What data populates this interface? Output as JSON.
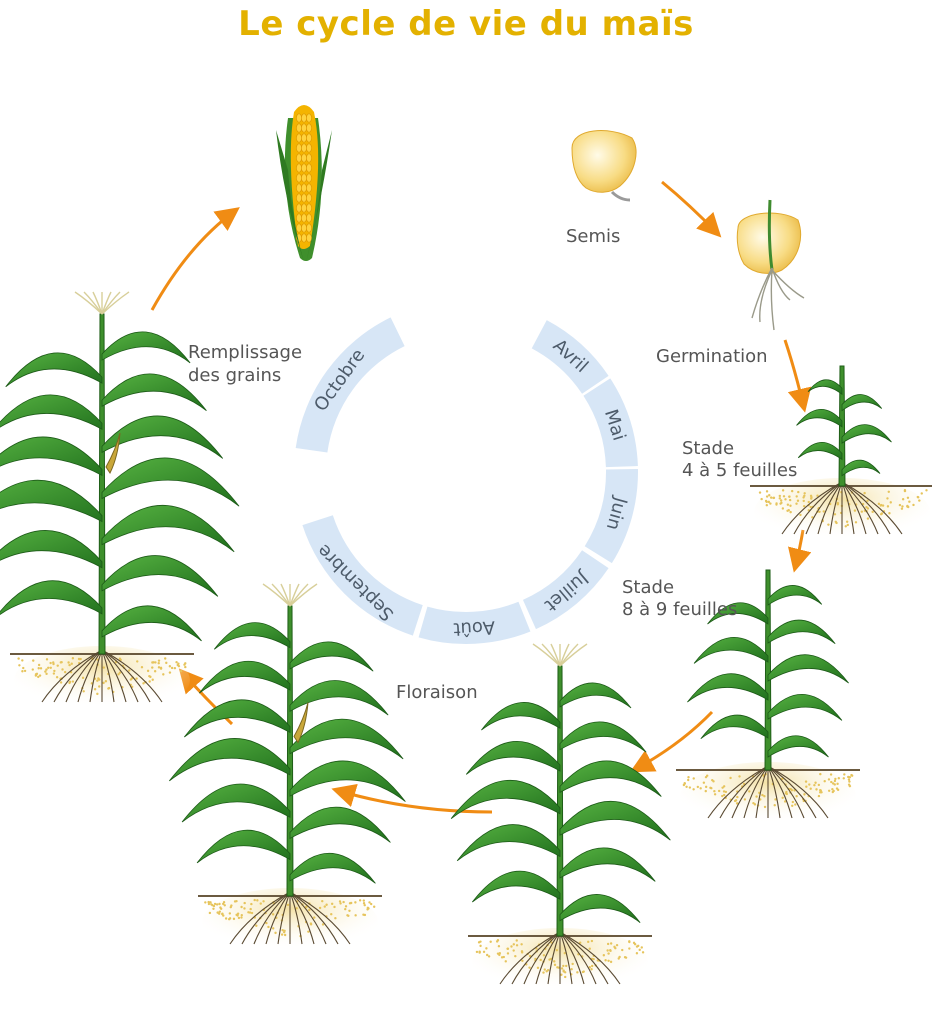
{
  "title": "Le cycle de vie du maïs",
  "stages": {
    "semis": "Semis",
    "germination": "Germination",
    "stade_4_5": [
      "Stade",
      "4 à 5 feuilles"
    ],
    "stade_8_9": [
      "Stade",
      "8 à 9 feuilles"
    ],
    "floraison": "Floraison",
    "remplissage": [
      "Remplissage",
      "des grains"
    ]
  },
  "months": [
    "Avril",
    "Mai",
    "Juin",
    "Juillet",
    "Août",
    "Septembre",
    "Octobre"
  ],
  "colors": {
    "title": "#e3b100",
    "arrow": "#f08c14",
    "ring": "#d7e6f6",
    "leaf": "#2f8a26",
    "leaf_light": "#4fae3a",
    "seed": "#f6d679",
    "soil": "#e6c45c",
    "root": "#5a4a32",
    "label": "#555555"
  }
}
